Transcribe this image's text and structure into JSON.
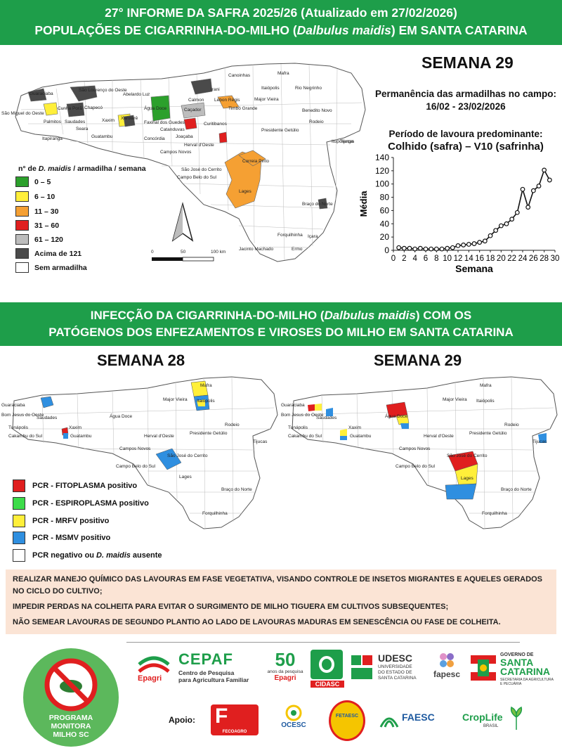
{
  "header": {
    "line1": "27° INFORME DA SAFRA 2025/26 (Atualizado em 27/02/2026)",
    "line2_pre": "POPULAÇÕES DE CIGARRINHA-DO-MILHO (",
    "line2_italic": "Dalbulus maidis",
    "line2_post": ") EM SANTA CATARINA"
  },
  "top_map": {
    "legend_title_pre": "n° de ",
    "legend_title_italic": "D. maidis",
    "legend_title_post": " / armadilha / semana",
    "legend": [
      {
        "label": "0 – 5",
        "color": "#2ca02c"
      },
      {
        "label": "6 – 10",
        "color": "#ffef3a"
      },
      {
        "label": "11 – 30",
        "color": "#f5a033"
      },
      {
        "label": "31 – 60",
        "color": "#e01f1f"
      },
      {
        "label": "61 – 120",
        "color": "#bdbdbd"
      },
      {
        "label": "Acima de 121",
        "color": "#4a4a4a"
      },
      {
        "label": "Sem armadilha",
        "color": "#ffffff"
      }
    ],
    "scale": {
      "zero": "0",
      "mid": "50",
      "end": "100 km"
    },
    "places": [
      "Canoinhas",
      "Mafra",
      "Itaiópolis",
      "Rio Negrinho",
      "Guaraciaba",
      "São Lourenço do Oeste",
      "Irani",
      "Caçador",
      "Lebon Régis",
      "Timbó Grande",
      "Major Vieira",
      "Benedito Novo",
      "Rodeio",
      "São Miguel do Oeste",
      "Abelardo Luz",
      "Xanxerê",
      "Faxinal dos Guedes",
      "Água Doce",
      "Calmon",
      "Presidente Getúlio",
      "Ituporanga",
      "Campos Novos",
      "Curitibanos",
      "Joaçaba",
      "Herval d'Oeste",
      "Concórdia",
      "Xaxim",
      "Seara",
      "Catanduvas",
      "São José do Cerrito",
      "Campo Belo do Sul",
      "Lages",
      "Correia Pinto",
      "Braço do Norte",
      "Forquilhinha",
      "Içara",
      "Jacinto Machado",
      "Ermo",
      "Tijucas",
      "Saudades",
      "Palmitos",
      "Chapecó",
      "Cunha Porã",
      "Guatambu",
      "Itapiranga"
    ]
  },
  "week_panel": {
    "title": "SEMANA 29",
    "trap_label": "Permanência das armadilhas no campo:",
    "trap_period": "16/02 - 23/02/2026",
    "crop_label": "Período de lavoura predominante:",
    "crop_stage": "Colhido (safra) – V10 (safrinha)"
  },
  "chart_data": {
    "type": "line",
    "xlabel": "Semana",
    "ylabel": "Média",
    "xlim": [
      0,
      30
    ],
    "ylim": [
      0,
      140
    ],
    "xticks": [
      0,
      2,
      4,
      6,
      8,
      10,
      12,
      14,
      16,
      18,
      20,
      22,
      24,
      26,
      28,
      30
    ],
    "yticks": [
      0,
      20,
      40,
      60,
      80,
      100,
      120,
      140
    ],
    "grid": false,
    "series": [
      {
        "x": [
          1,
          2,
          3,
          4,
          5,
          6,
          7,
          8,
          9,
          10,
          11,
          12,
          13,
          14,
          15,
          16,
          17,
          18,
          19,
          20,
          21,
          22,
          23,
          24,
          25,
          26,
          27,
          28,
          29
        ],
        "values": [
          4,
          3,
          3,
          2,
          3,
          2,
          2,
          2,
          2,
          3,
          4,
          7,
          8,
          9,
          10,
          12,
          14,
          22,
          30,
          37,
          40,
          47,
          57,
          92,
          65,
          90,
          97,
          121,
          106
        ]
      }
    ],
    "color": "#111111"
  },
  "infection": {
    "title_pre": "INFECÇÃO DA CIGARRINHA-DO-MILHO (",
    "title_italic": "Dalbulus maidis",
    "title_post": ") COM OS",
    "title_line2": "PATÓGENOS DOS ENFEZAMENTOS E VIROSES DO MILHO EM SANTA CATARINA",
    "week_left": "SEMANA 28",
    "week_right": "SEMANA 29",
    "legend": [
      {
        "label": "PCR - FITOPLASMA positivo",
        "color": "#e01f1f"
      },
      {
        "label": "PCR - ESPIROPLASMA positivo",
        "color": "#3ddc4a"
      },
      {
        "label": "PCR - MRFV positivo",
        "color": "#ffef3a"
      },
      {
        "label": "PCR - MSMV positivo",
        "color": "#2f8fe0"
      },
      {
        "label_pre": "PCR negativo ou ",
        "label_italic": "D. maidis",
        "label_post": " ausente",
        "color": "#ffffff"
      }
    ],
    "left_places": [
      "Guaraciaba",
      "Bom Jesus do Oeste",
      "Tunápolis",
      "Cakambu do Sul",
      "Saudades",
      "Xaxim",
      "Guatambu",
      "Água Doce",
      "Herval d'Oeste",
      "Campos Novos",
      "Major Vieira",
      "Mafra",
      "Itaiópolis",
      "Presidente Getúlio",
      "Rodeio",
      "Tijucas",
      "São José do Cerrito",
      "Campo Belo do Sul",
      "Lages",
      "Braço do Norte",
      "Forquilhinha"
    ],
    "right_places": [
      "Guaraciaba",
      "Bom Jesus do Oeste",
      "Tunápolis",
      "Cakambu do Sul",
      "Saudades",
      "Xaxim",
      "Guatambu",
      "Água Doce",
      "Herval d'Oeste",
      "Campos Novos",
      "Major Vieira",
      "Mafra",
      "Itaiópolis",
      "Presidente Getúlio",
      "Rodeio",
      "Tijucas",
      "São José do Cerrito",
      "Campo Belo do Sul",
      "Lages",
      "Braço do Norte",
      "Forquilhinha"
    ]
  },
  "recommendations": [
    "REALIZAR MANEJO QUÍMICO DAS LAVOURAS EM FASE VEGETATIVA, VISANDO CONTROLE DE INSETOS MIGRANTES E AQUELES GERADOS NO CICLO DO CULTIVO;",
    "IMPEDIR PERDAS NA COLHEITA PARA EVITAR O SURGIMENTO DE MILHO TIGUERA EM CULTIVOS SUBSEQUENTES;",
    "NÃO SEMEAR LAVOURAS DE SEGUNDO PLANTIO AO LADO DE LAVOURAS MADURAS EM SENESCÊNCIA OU FASE DE COLHEITA."
  ],
  "footer": {
    "program": [
      "PROGRAMA",
      "MONITORA",
      "MILHO SC"
    ],
    "epagri": "Epagri",
    "cepaf": "CEPAF",
    "cepaf_sub1": "Centro de Pesquisa",
    "cepaf_sub2": "para Agricultura Familiar",
    "anos_num": "50",
    "anos_sub": "anos da pesquisa",
    "anos_epagri": "Epagri",
    "cidasc": "CIDASC",
    "udesc": "UDESC",
    "udesc_sub1": "UNIVERSIDADE",
    "udesc_sub2": "DO ESTADO DE",
    "udesc_sub3": "SANTA CATARINA",
    "fapesc": "fapesc",
    "gov1": "GOVERNO DE",
    "gov2": "SANTA",
    "gov3": "CATARINA",
    "gov_sub": "SECRETARIA DA AGRICULTURA E PECUÁRIA",
    "apoio": "Apoio:",
    "fecoagro": "FECOAGRO",
    "ocesc": "OCESC",
    "fetaesc": "FETAESC",
    "faesc": "FAESC",
    "croplife": "CropLife",
    "croplife_sub": "BRASIL"
  }
}
